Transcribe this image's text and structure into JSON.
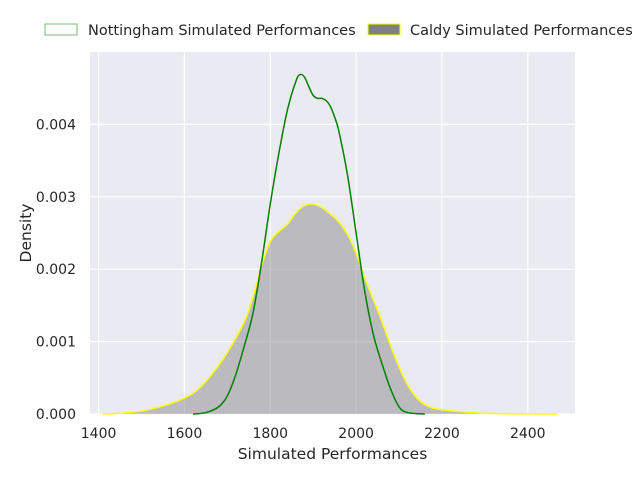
{
  "chart_data": {
    "type": "area",
    "title": "",
    "xlabel": "Simulated Performances",
    "ylabel": "Density",
    "xlim": [
      1380,
      2510
    ],
    "ylim": [
      0,
      0.005
    ],
    "x_ticks": [
      1400,
      1600,
      1800,
      2000,
      2200,
      2400
    ],
    "x_tick_labels": [
      "1400",
      "1600",
      "1800",
      "2000",
      "2200",
      "2400"
    ],
    "y_ticks": [
      0,
      0.001,
      0.002,
      0.003,
      0.004
    ],
    "y_tick_labels": [
      "0.000",
      "0.001",
      "0.002",
      "0.003",
      "0.004"
    ],
    "grid": true,
    "legend_position": "top",
    "series": [
      {
        "name": "Nottingham Simulated Performances",
        "style": "line",
        "color": "#008000",
        "points": [
          [
            1620,
            0
          ],
          [
            1650,
            2e-05
          ],
          [
            1680,
            0.0001
          ],
          [
            1700,
            0.00025
          ],
          [
            1720,
            0.00055
          ],
          [
            1740,
            0.00095
          ],
          [
            1760,
            0.0014
          ],
          [
            1780,
            0.0021
          ],
          [
            1800,
            0.0029
          ],
          [
            1820,
            0.0036
          ],
          [
            1840,
            0.0042
          ],
          [
            1860,
            0.0046
          ],
          [
            1870,
            0.00469
          ],
          [
            1880,
            0.00465
          ],
          [
            1890,
            0.00452
          ],
          [
            1900,
            0.0044
          ],
          [
            1910,
            0.00436
          ],
          [
            1920,
            0.00436
          ],
          [
            1930,
            0.00433
          ],
          [
            1940,
            0.00425
          ],
          [
            1950,
            0.0041
          ],
          [
            1960,
            0.0039
          ],
          [
            1980,
            0.0033
          ],
          [
            2000,
            0.0025
          ],
          [
            2020,
            0.0017
          ],
          [
            2040,
            0.0011
          ],
          [
            2060,
            0.0007
          ],
          [
            2080,
            0.00035
          ],
          [
            2100,
            0.0001
          ],
          [
            2120,
            2e-05
          ],
          [
            2160,
            0
          ]
        ]
      },
      {
        "name": "Caldy Simulated Performances",
        "style": "filled",
        "color": "#ffff00",
        "fill": "#808080",
        "points": [
          [
            1410,
            0
          ],
          [
            1450,
            1e-05
          ],
          [
            1500,
            4e-05
          ],
          [
            1550,
            0.00011
          ],
          [
            1600,
            0.00022
          ],
          [
            1630,
            0.00033
          ],
          [
            1660,
            0.00052
          ],
          [
            1700,
            0.00085
          ],
          [
            1740,
            0.00128
          ],
          [
            1760,
            0.00162
          ],
          [
            1780,
            0.00205
          ],
          [
            1800,
            0.00238
          ],
          [
            1820,
            0.00252
          ],
          [
            1840,
            0.00262
          ],
          [
            1860,
            0.00278
          ],
          [
            1880,
            0.00288
          ],
          [
            1900,
            0.0029
          ],
          [
            1920,
            0.00285
          ],
          [
            1940,
            0.00276
          ],
          [
            1960,
            0.00265
          ],
          [
            1980,
            0.00248
          ],
          [
            2000,
            0.00222
          ],
          [
            2020,
            0.00188
          ],
          [
            2040,
            0.00158
          ],
          [
            2060,
            0.00128
          ],
          [
            2080,
            0.00095
          ],
          [
            2100,
            0.00065
          ],
          [
            2120,
            0.0004
          ],
          [
            2140,
            0.00023
          ],
          [
            2160,
            0.00013
          ],
          [
            2180,
            8e-05
          ],
          [
            2200,
            6e-05
          ],
          [
            2220,
            4.5e-05
          ],
          [
            2260,
            2.5e-05
          ],
          [
            2300,
            1e-05
          ],
          [
            2350,
            4e-06
          ],
          [
            2400,
            1e-06
          ],
          [
            2470,
            0
          ]
        ]
      }
    ]
  }
}
